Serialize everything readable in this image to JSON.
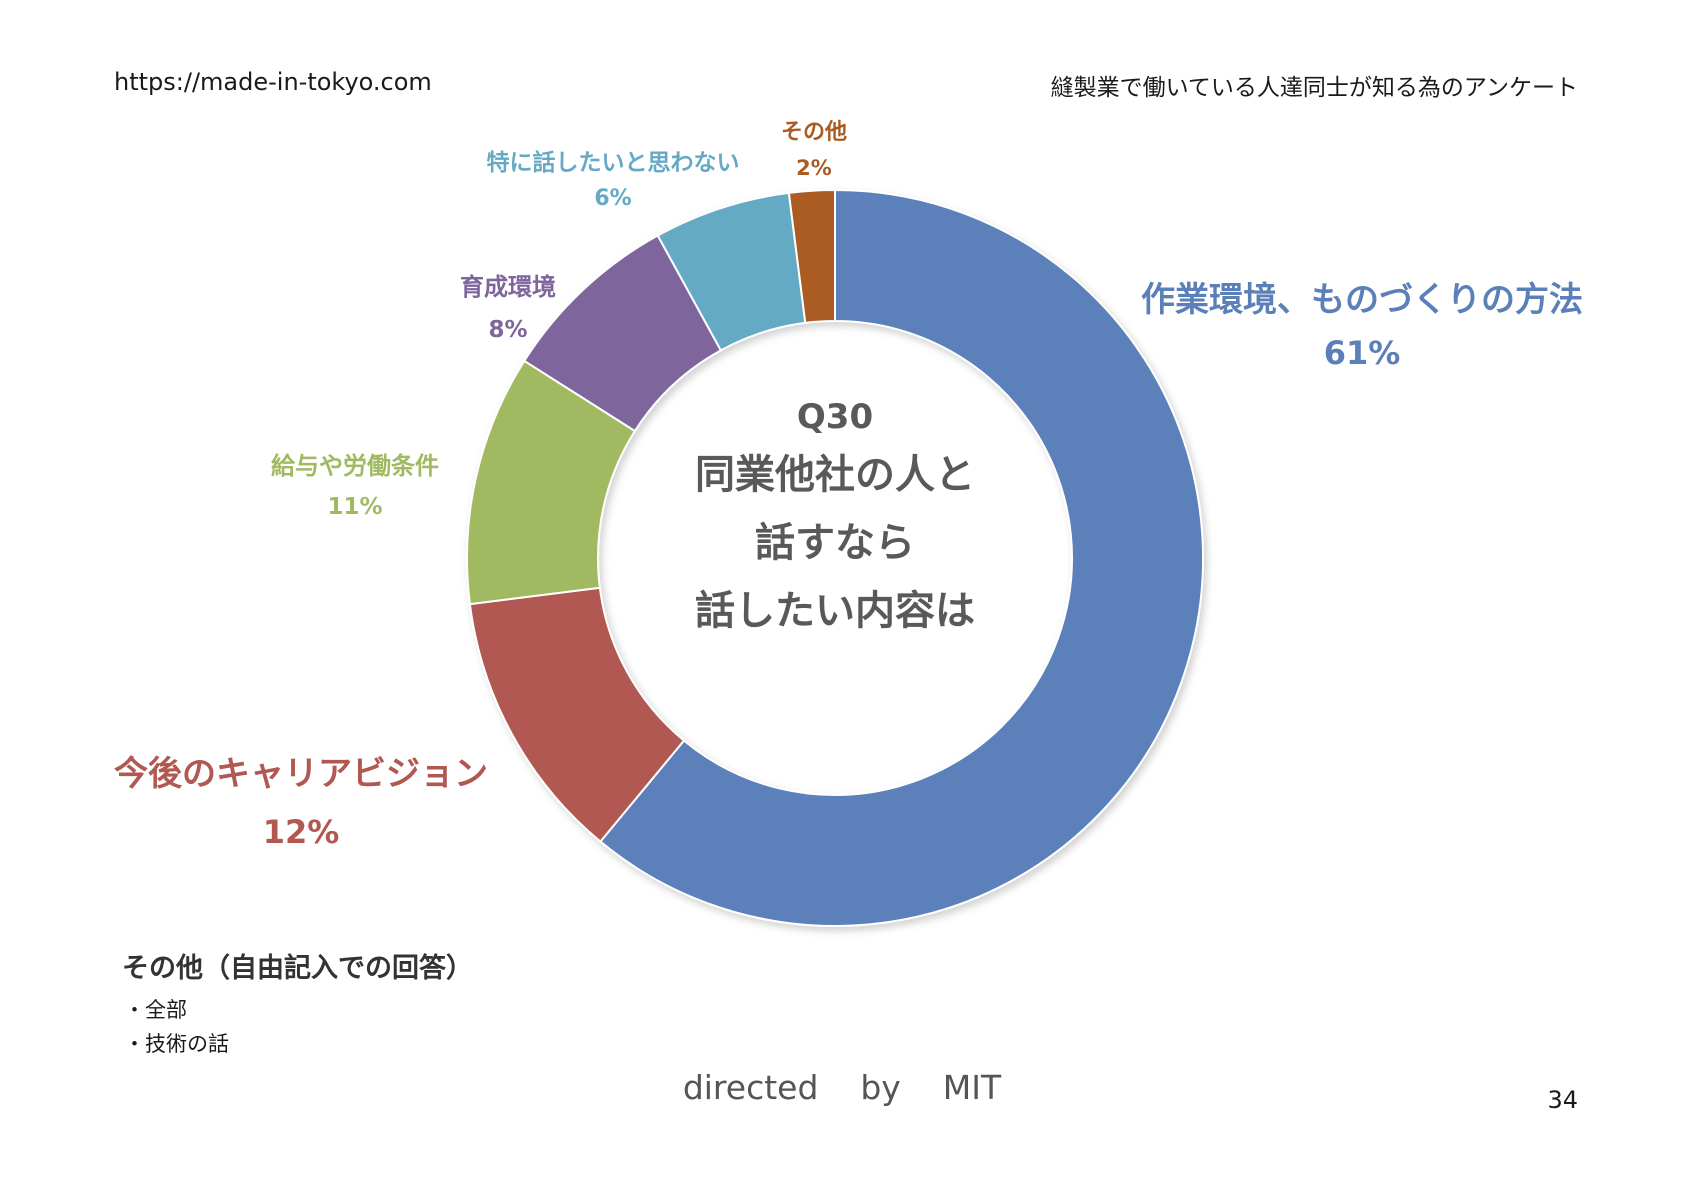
{
  "header": {
    "url": "https://made-in-tokyo.com",
    "survey_title": "縫製業で働いている人達同士が知る為のアンケート"
  },
  "chart_data": {
    "type": "pie",
    "variant": "donut",
    "center_text": [
      "Q30",
      "同業他社の人と",
      "話すなら",
      "話したい内容は"
    ],
    "slices": [
      {
        "label": "作業環境、ものづくりの方法",
        "value": 61,
        "value_label": "61%",
        "color": "#5B80B9"
      },
      {
        "label": "今後のキャリアビジョン",
        "value": 12,
        "value_label": "12%",
        "color": "#B05851"
      },
      {
        "label": "給与や労働条件",
        "value": 11,
        "value_label": "11%",
        "color": "#A1BA62"
      },
      {
        "label": "育成環境",
        "value": 8,
        "value_label": "8%",
        "color": "#7E659C"
      },
      {
        "label": "特に話したいと思わない",
        "value": 6,
        "value_label": "6%",
        "color": "#65AAC4"
      },
      {
        "label": "その他",
        "value": 2,
        "value_label": "2%",
        "color": "#AA5B22"
      }
    ]
  },
  "notes": {
    "title": "その他（自由記入での回答）",
    "items": [
      "・全部",
      "・技術の話"
    ]
  },
  "footer": {
    "credit": "directed    by    MIT",
    "page_number": "34"
  }
}
